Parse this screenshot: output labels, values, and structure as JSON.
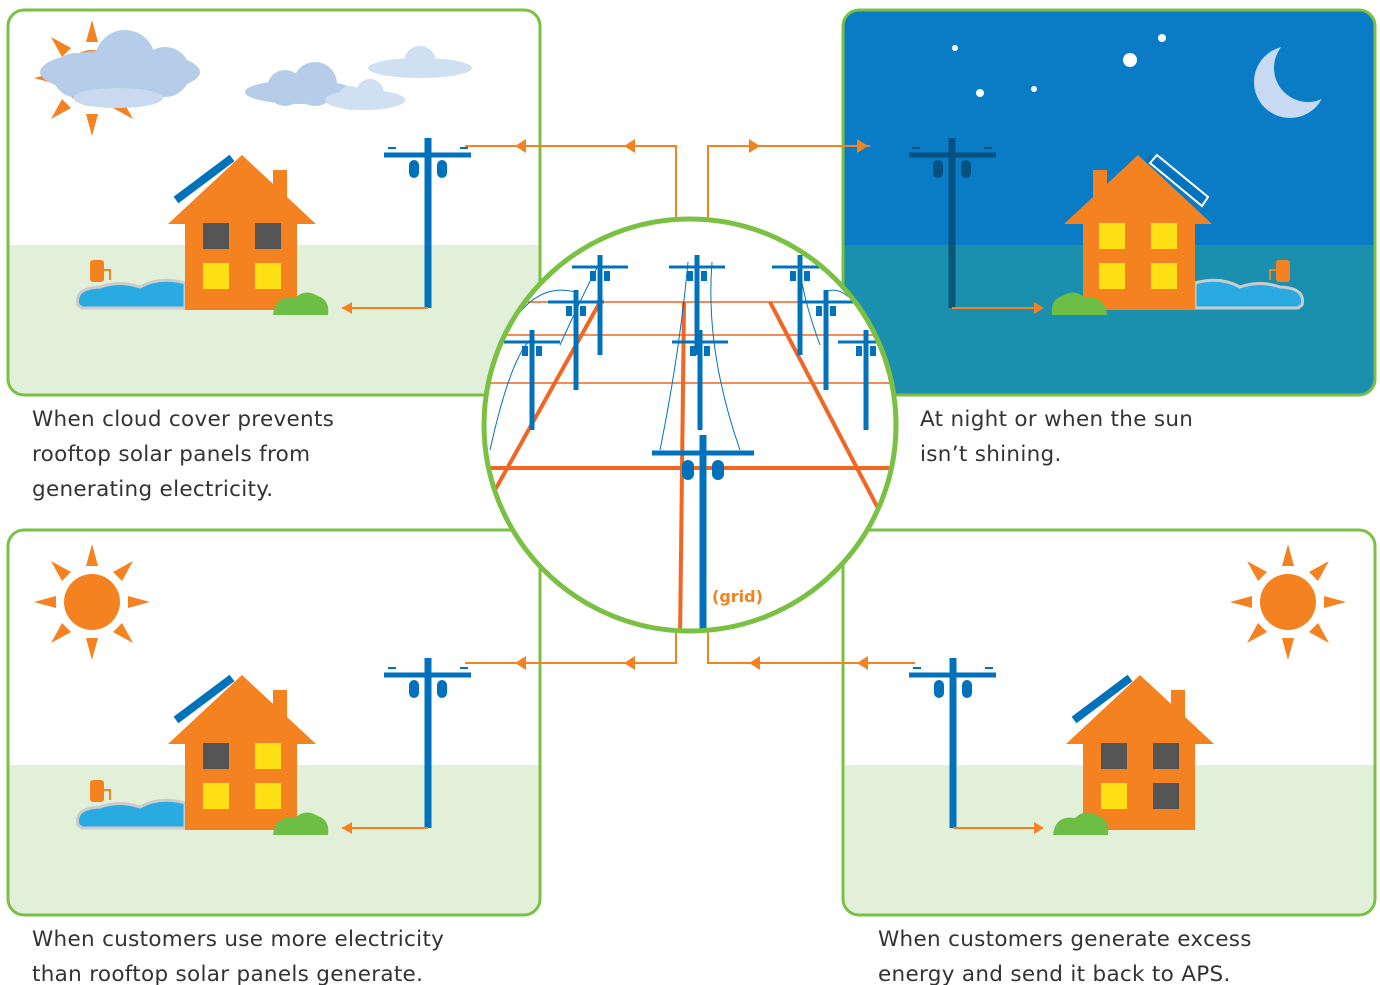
{
  "panels": [
    {
      "caption": [
        "When cloud cover prevents",
        "rooftop solar panels from",
        "generating electricity."
      ]
    },
    {
      "caption": [
        "At night or when the sun",
        "isn’t shining."
      ]
    },
    {
      "caption": [
        "When customers use more electricity",
        "than rooftop solar panels generate."
      ]
    },
    {
      "caption": [
        "When customers generate excess",
        "energy and send it back to APS."
      ]
    }
  ],
  "grid_label": "(grid)"
}
